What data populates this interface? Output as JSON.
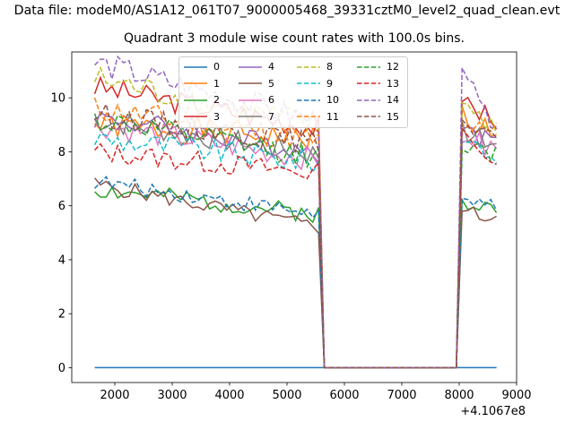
{
  "figure": {
    "supertitle": "Data file: modeM0/AS1A12_061T07_9000005468_39331cztM0_level2_quad_clean.evt",
    "subtitle": "Quadrant 3 module wise count rates with 100.0s bins.",
    "x_offset_label": "+4.1067e8"
  },
  "chart_data": {
    "type": "line",
    "title": "Quadrant 3 module wise count rates with 100.0s bins.",
    "xlabel": "",
    "ylabel": "",
    "x_offset": 410670000,
    "xlim": [
      1250,
      9000
    ],
    "ylim": [
      -0.55,
      11.7
    ],
    "xticks": [
      2000,
      3000,
      4000,
      5000,
      6000,
      7000,
      8000,
      9000
    ],
    "yticks": [
      0,
      2,
      4,
      6,
      8,
      10
    ],
    "grid": false,
    "legend_position": "top-center",
    "legend_columns": 4,
    "x_start": 1650,
    "x_step": 100,
    "series": [
      {
        "name": "0",
        "color": "#1f77b4",
        "dash": "solid",
        "segments": [
          [
            1650,
            0,
            65,
            0
          ],
          [
            8050,
            0,
            7,
            0
          ]
        ]
      },
      {
        "name": "1",
        "color": "#ff7f0e",
        "dash": "solid",
        "segments": [
          [
            1650,
            9.0,
            40,
            8.5,
            0.5,
            1
          ],
          [
            8050,
            9.3,
            7,
            8.8,
            0.5,
            11
          ]
        ]
      },
      {
        "name": "2",
        "color": "#2ca02c",
        "dash": "solid",
        "segments": [
          [
            1650,
            6.6,
            40,
            5.7,
            0.35,
            2
          ],
          [
            8050,
            6.1,
            7,
            5.9,
            0.25,
            12
          ]
        ]
      },
      {
        "name": "3",
        "color": "#d62728",
        "dash": "solid",
        "segments": [
          [
            1650,
            10.4,
            40,
            8.9,
            0.45,
            3
          ],
          [
            8050,
            9.8,
            7,
            9.2,
            0.4,
            13
          ]
        ]
      },
      {
        "name": "4",
        "color": "#9467bd",
        "dash": "solid",
        "segments": [
          [
            1650,
            9.3,
            40,
            8.0,
            0.45,
            4
          ],
          [
            8050,
            8.9,
            7,
            8.2,
            0.4,
            14
          ]
        ]
      },
      {
        "name": "5",
        "color": "#8c564b",
        "dash": "solid",
        "segments": [
          [
            1650,
            6.8,
            40,
            5.2,
            0.3,
            5
          ],
          [
            8050,
            5.9,
            7,
            5.5,
            0.2,
            15
          ]
        ]
      },
      {
        "name": "6",
        "color": "#e377c2",
        "dash": "solid",
        "segments": [
          [
            1650,
            9.0,
            40,
            7.7,
            0.45,
            6
          ],
          [
            8050,
            8.7,
            7,
            8.0,
            0.4,
            16
          ]
        ]
      },
      {
        "name": "7",
        "color": "#7f7f7f",
        "dash": "solid",
        "segments": [
          [
            1650,
            9.2,
            40,
            7.9,
            0.45,
            7
          ],
          [
            8050,
            8.8,
            7,
            8.3,
            0.4,
            17
          ]
        ]
      },
      {
        "name": "8",
        "color": "#bcbd22",
        "dash": "dashed",
        "segments": [
          [
            1650,
            10.7,
            40,
            8.9,
            0.55,
            8
          ],
          [
            8050,
            9.6,
            7,
            8.8,
            0.4,
            18
          ]
        ]
      },
      {
        "name": "9",
        "color": "#17becf",
        "dash": "dashed",
        "segments": [
          [
            1650,
            8.5,
            40,
            7.6,
            0.45,
            9
          ],
          [
            8050,
            8.3,
            7,
            7.8,
            0.4,
            19
          ]
        ]
      },
      {
        "name": "10",
        "color": "#1f77b4",
        "dash": "dashed",
        "segments": [
          [
            1650,
            6.9,
            40,
            5.7,
            0.3,
            10
          ],
          [
            8050,
            6.3,
            7,
            6.0,
            0.2,
            20
          ]
        ]
      },
      {
        "name": "11",
        "color": "#ff7f0e",
        "dash": "dashed",
        "segments": [
          [
            1650,
            9.6,
            40,
            8.4,
            0.5,
            11
          ],
          [
            8050,
            9.2,
            7,
            8.7,
            0.4,
            21
          ]
        ]
      },
      {
        "name": "12",
        "color": "#2ca02c",
        "dash": "dashed",
        "segments": [
          [
            1650,
            9.2,
            40,
            7.8,
            0.45,
            12
          ],
          [
            8050,
            8.4,
            7,
            8.0,
            0.4,
            22
          ]
        ]
      },
      {
        "name": "13",
        "color": "#d62728",
        "dash": "dashed",
        "segments": [
          [
            1650,
            8.0,
            40,
            7.2,
            0.4,
            13
          ],
          [
            8050,
            8.5,
            7,
            7.4,
            0.4,
            23
          ]
        ]
      },
      {
        "name": "14",
        "color": "#9467bd",
        "dash": "dashed",
        "segments": [
          [
            1650,
            11.3,
            40,
            9.1,
            0.5,
            14
          ],
          [
            8050,
            10.9,
            7,
            8.9,
            0.4,
            24
          ]
        ]
      },
      {
        "name": "15",
        "color": "#8c564b",
        "dash": "dashed",
        "segments": [
          [
            1650,
            9.4,
            40,
            8.3,
            0.45,
            15
          ],
          [
            8050,
            9.1,
            7,
            8.6,
            0.4,
            25
          ]
        ]
      }
    ]
  }
}
